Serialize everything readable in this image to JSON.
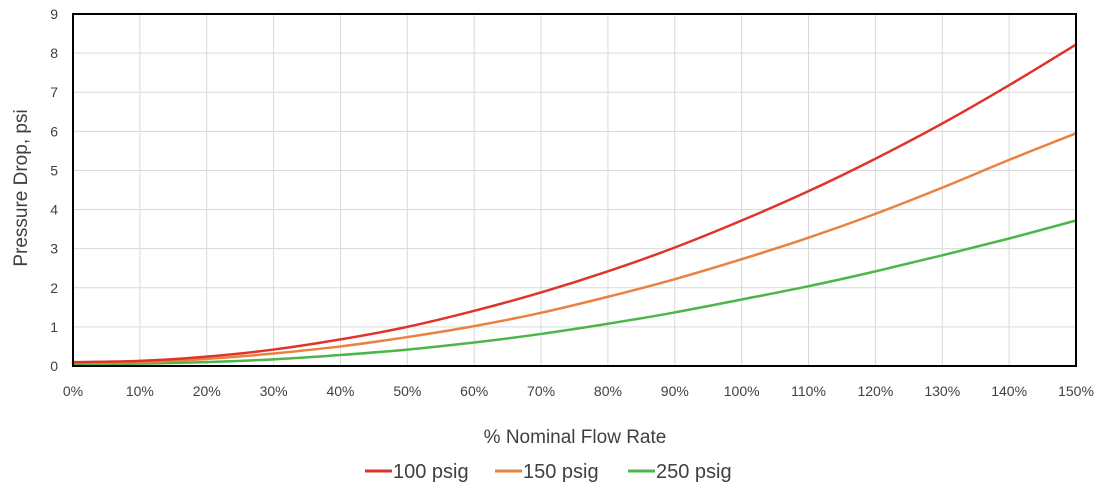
{
  "chart_data": {
    "type": "line",
    "title": "",
    "xlabel": "% Nominal Flow Rate",
    "ylabel": "Pressure Drop, psi",
    "xlim": [
      0,
      150
    ],
    "ylim": [
      0,
      9
    ],
    "x_ticks": [
      0,
      10,
      20,
      30,
      40,
      50,
      60,
      70,
      80,
      90,
      100,
      110,
      120,
      130,
      140,
      150
    ],
    "x_tick_labels": [
      "0%",
      "10%",
      "20%",
      "30%",
      "40%",
      "50%",
      "60%",
      "70%",
      "80%",
      "90%",
      "100%",
      "110%",
      "120%",
      "130%",
      "140%",
      "150%"
    ],
    "y_ticks": [
      0,
      1,
      2,
      3,
      4,
      5,
      6,
      7,
      8,
      9
    ],
    "y_tick_labels": [
      "0",
      "1",
      "2",
      "3",
      "4",
      "5",
      "6",
      "7",
      "8",
      "9"
    ],
    "grid": true,
    "legend_position": "bottom",
    "x": [
      0,
      10,
      20,
      30,
      40,
      50,
      60,
      70,
      80,
      90,
      100,
      110,
      120,
      130,
      140,
      150
    ],
    "series": [
      {
        "name": "100 psig",
        "color": "#e0342a",
        "values": [
          0.1,
          0.13,
          0.24,
          0.42,
          0.68,
          1.0,
          1.41,
          1.88,
          2.42,
          3.03,
          3.72,
          4.47,
          5.3,
          6.2,
          7.18,
          8.22
        ]
      },
      {
        "name": "150 psig",
        "color": "#e8823e",
        "values": [
          0.08,
          0.1,
          0.18,
          0.32,
          0.5,
          0.74,
          1.02,
          1.36,
          1.77,
          2.22,
          2.73,
          3.28,
          3.89,
          4.56,
          5.27,
          5.95
        ]
      },
      {
        "name": "250 psig",
        "color": "#4cb649",
        "values": [
          0.05,
          0.06,
          0.1,
          0.17,
          0.28,
          0.42,
          0.6,
          0.82,
          1.08,
          1.37,
          1.7,
          2.04,
          2.42,
          2.83,
          3.26,
          3.72
        ]
      }
    ],
    "plot_border_color": "#000000",
    "grid_color": "#d9d9d9"
  }
}
